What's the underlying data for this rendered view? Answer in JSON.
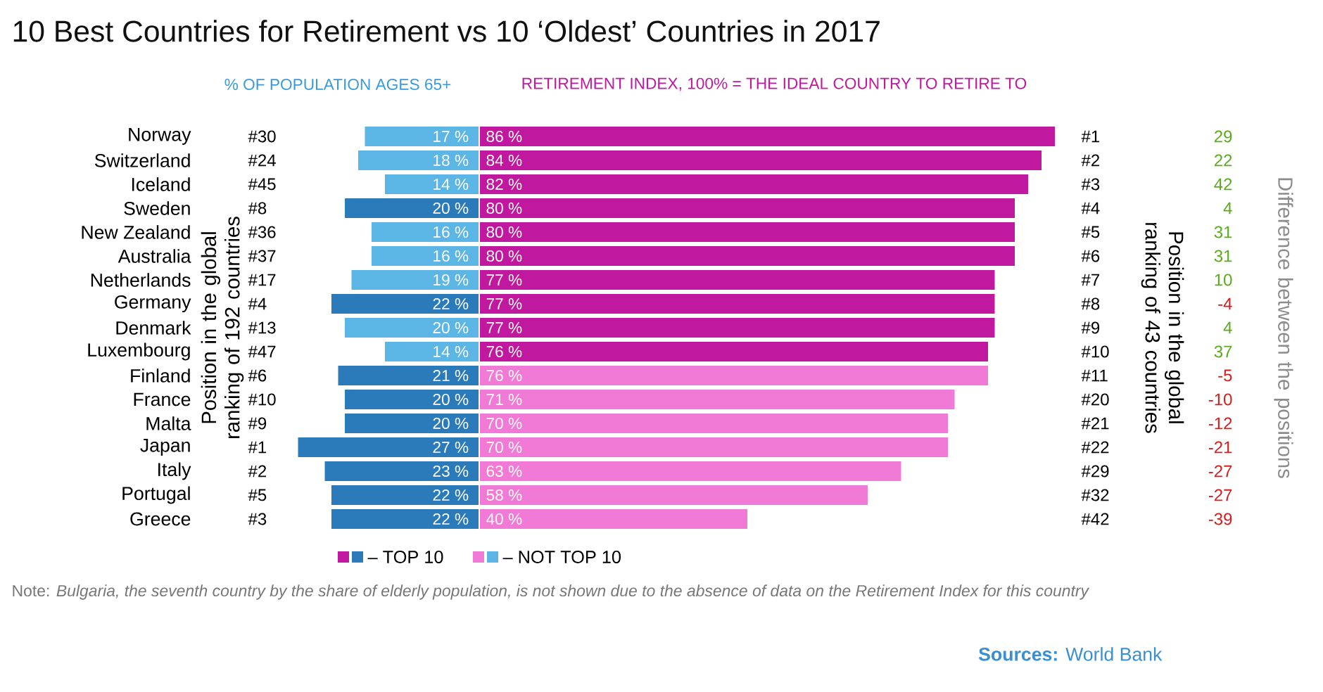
{
  "chart_data": [
    {
      "type": "bar",
      "orientation": "horizontal",
      "title": "10 Best Countries for Retirement vs 10 ‘Oldest’ Countries in 2017",
      "subtitle": "% OF POPULATION AGES 65+",
      "legend": "bottom",
      "categories": [
        "Norway",
        "Switzerland",
        "Iceland",
        "Sweden",
        "New Zealand",
        "Australia",
        "Netherlands",
        "Germany",
        "Denmark",
        "Luxembourg",
        "Finland",
        "France",
        "Malta",
        "Japan",
        "Italy",
        "Portugal",
        "Greece"
      ],
      "series": [
        {
          "name": "– TOP 10",
          "color": "#2b7bba",
          "values": [
            null,
            null,
            null,
            20,
            null,
            null,
            null,
            22,
            null,
            null,
            21,
            20,
            20,
            27,
            23,
            22,
            22
          ],
          "value_labels": [
            null,
            null,
            null,
            "20 %",
            null,
            null,
            null,
            "22 %",
            null,
            null,
            "21 %",
            "20 %",
            "20 %",
            "27 %",
            "23 %",
            "22 %",
            "22 %"
          ]
        },
        {
          "name": "– NOT TOP 10",
          "color": "#5bb5e5",
          "values": [
            17,
            18,
            14,
            null,
            16,
            16,
            19,
            null,
            20,
            14,
            null,
            null,
            null,
            null,
            null,
            null,
            null
          ],
          "value_labels": [
            "17 %",
            "18 %",
            "14 %",
            null,
            "16 %",
            "16 %",
            "19 %",
            null,
            "20 %",
            "14 %",
            null,
            null,
            null,
            null,
            null,
            null,
            null
          ]
        }
      ],
      "annotations": [
        "Note: *Bulgaria, the seventh country by the share of elderly population, is not shown due to the absence of data on the Retirement Index for this country*",
        "**Sources:** World Bank"
      ]
    },
    {
      "type": "bar",
      "orientation": "horizontal",
      "subtitle": "RETIREMENT INDEX, 100% = THE IDEAL COUNTRY TO RETIRE TO",
      "categories": [
        null,
        null,
        null,
        null,
        null,
        null,
        null,
        null,
        null,
        null,
        null,
        null,
        null,
        null,
        null,
        null,
        null
      ],
      "series": [
        {
          "color": "#c0189e",
          "values": [
            86,
            84,
            82,
            80,
            80,
            80,
            77,
            77,
            77,
            76,
            null,
            null,
            null,
            null,
            null,
            null,
            null
          ],
          "value_labels": [
            "86 %",
            "84 %",
            "82 %",
            "80 %",
            "80 %",
            "80 %",
            "77 %",
            "77 %",
            "77 %",
            "76 %",
            null,
            null,
            null,
            null,
            null,
            null,
            null
          ]
        },
        {
          "color": "#f07ad6",
          "values": [
            null,
            null,
            null,
            null,
            null,
            null,
            null,
            null,
            null,
            null,
            76,
            71,
            70,
            70,
            63,
            58,
            40
          ],
          "value_labels": [
            null,
            null,
            null,
            null,
            null,
            null,
            null,
            null,
            null,
            null,
            "76 %",
            "71 %",
            "70 %",
            "70 %",
            "63 %",
            "58 %",
            "40 %"
          ]
        }
      ]
    },
    {
      "type": "other",
      "ylabel": "Position in the global ranking of 192 countries",
      "values": [
        30,
        24,
        45,
        8,
        36,
        37,
        17,
        4,
        13,
        47,
        6,
        10,
        9,
        1,
        2,
        5,
        3
      ],
      "value_labels": [
        "#30",
        "#24",
        "#45",
        "#8",
        "#36",
        "#37",
        "#17",
        "#4",
        "#13",
        "#47",
        "#6",
        "#10",
        "#9",
        "#1",
        "#2",
        "#5",
        "#3"
      ]
    },
    {
      "type": "other",
      "ylabel": "Position in the global ranking of 43 countries",
      "values": [
        1,
        2,
        3,
        4,
        5,
        6,
        7,
        8,
        9,
        10,
        11,
        20,
        21,
        22,
        29,
        32,
        42
      ],
      "value_labels": [
        "#1",
        "#2",
        "#3",
        "#4",
        "#5",
        "#6",
        "#7",
        "#8",
        "#9",
        "#10",
        "#11",
        "#20",
        "#21",
        "#22",
        "#29",
        "#32",
        "#42"
      ]
    },
    {
      "type": "other",
      "ylabel": "Difference between the positions",
      "data_labels": true,
      "values": [
        29,
        22,
        42,
        4,
        31,
        31,
        10,
        -4,
        4,
        37,
        -5,
        -10,
        -12,
        -21,
        -27,
        -27,
        -39
      ],
      "colors": [
        "#5aaa1e",
        "#5aaa1e",
        "#5aaa1e",
        "#5aaa1e",
        "#5aaa1e",
        "#5aaa1e",
        "#5aaa1e",
        "#d0201e",
        "#5aaa1e",
        "#5aaa1e",
        "#d0201e",
        "#d0201e",
        "#d0201e",
        "#d0201e",
        "#d0201e",
        "#d0201e",
        "#d0201e"
      ]
    }
  ]
}
